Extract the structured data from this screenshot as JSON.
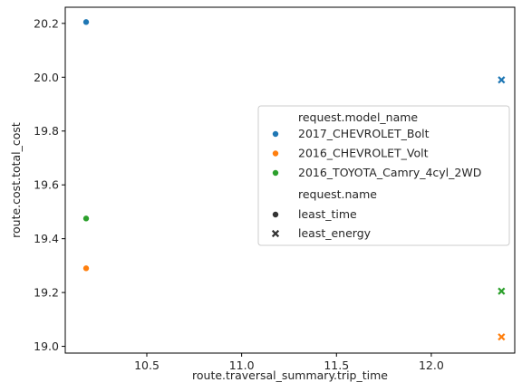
{
  "chart_data": {
    "type": "scatter",
    "title": "",
    "xlabel": "route.traversal_summary.trip_time",
    "ylabel": "route.cost.total_cost",
    "xlim": [
      10.07,
      12.44
    ],
    "ylim": [
      18.975,
      20.26
    ],
    "x_ticks": [
      "10.5",
      "11.0",
      "11.5",
      "12.0"
    ],
    "y_ticks": [
      "19.0",
      "19.2",
      "19.4",
      "19.6",
      "19.8",
      "20.0",
      "20.2"
    ],
    "x_tick_values": [
      10.5,
      11.0,
      11.5,
      12.0
    ],
    "y_tick_values": [
      19.0,
      19.2,
      19.4,
      19.6,
      19.8,
      20.0,
      20.2
    ],
    "grid": false,
    "legend_position": "center-right",
    "legend": {
      "hue_title": "request.model_name",
      "style_title": "request.name",
      "hue_entries": [
        {
          "label": "2017_CHEVROLET_Bolt",
          "color": "#1f77b4"
        },
        {
          "label": "2016_CHEVROLET_Volt",
          "color": "#ff7f0e"
        },
        {
          "label": "2016_TOYOTA_Camry_4cyl_2WD",
          "color": "#2ca02c"
        }
      ],
      "style_entries": [
        {
          "label": "least_time",
          "marker": "circle"
        },
        {
          "label": "least_energy",
          "marker": "x"
        }
      ]
    },
    "series": [
      {
        "model": "2017_CHEVROLET_Bolt",
        "color": "#1f77b4",
        "points": [
          {
            "x": 10.18,
            "y": 20.205,
            "style": "least_time"
          },
          {
            "x": 12.37,
            "y": 19.99,
            "style": "least_energy"
          }
        ]
      },
      {
        "model": "2016_CHEVROLET_Volt",
        "color": "#ff7f0e",
        "points": [
          {
            "x": 10.18,
            "y": 19.29,
            "style": "least_time"
          },
          {
            "x": 12.37,
            "y": 19.035,
            "style": "least_energy"
          }
        ]
      },
      {
        "model": "2016_TOYOTA_Camry_4cyl_2WD",
        "color": "#2ca02c",
        "points": [
          {
            "x": 10.18,
            "y": 19.475,
            "style": "least_time"
          },
          {
            "x": 12.37,
            "y": 19.205,
            "style": "least_energy"
          }
        ]
      }
    ]
  }
}
